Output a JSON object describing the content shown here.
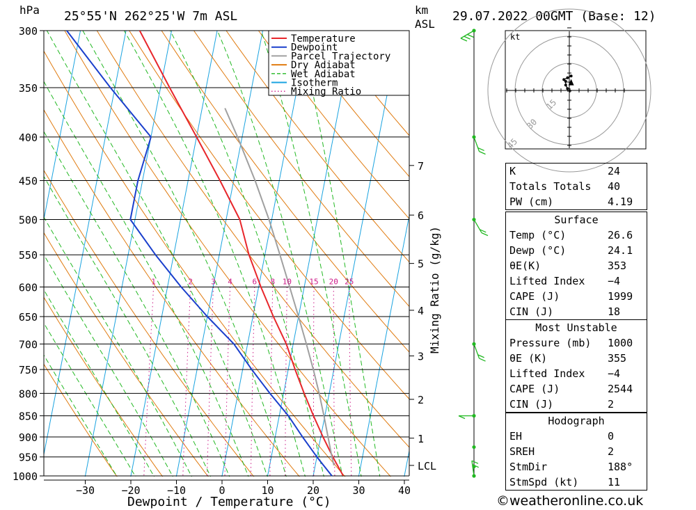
{
  "header": {
    "pressure_unit": "hPa",
    "location": "25°55'N  262°25'W  7m  ASL",
    "height_unit_line1": "km",
    "height_unit_line2": "ASL",
    "datetime": "29.07.2022  00GMT  (Base: 12)"
  },
  "chart_data": {
    "type": "skew-t",
    "xlabel": "Dewpoint / Temperature (°C)",
    "ylabel": "hPa",
    "mixing_ratio_axis_label": "Mixing Ratio (g/kg)",
    "pressure_levels": [
      300,
      350,
      400,
      450,
      500,
      550,
      600,
      650,
      700,
      750,
      800,
      850,
      900,
      950,
      1000
    ],
    "pressure_tick_labels": [
      "300",
      "350",
      "400",
      "450",
      "500",
      "550",
      "600",
      "650",
      "700",
      "750",
      "800",
      "850",
      "900",
      "950",
      "1000"
    ],
    "temperature_ticks": [
      -30,
      -20,
      -10,
      0,
      10,
      20,
      30,
      40
    ],
    "temperature_tick_labels": [
      "−30",
      "−20",
      "−10",
      "0",
      "10",
      "20",
      "30",
      "40"
    ],
    "xlim": [
      -40,
      40
    ],
    "ylim": [
      1000,
      300
    ],
    "height_ticks_km": [
      {
        "label": "7",
        "p": 432
      },
      {
        "label": "6",
        "p": 494
      },
      {
        "label": "5",
        "p": 563
      },
      {
        "label": "4",
        "p": 639
      },
      {
        "label": "3",
        "p": 723
      },
      {
        "label": "2",
        "p": 813
      },
      {
        "label": "1",
        "p": 903
      },
      {
        "label": "LCL",
        "p": 972
      }
    ],
    "mixing_ratio_values": [
      1,
      2,
      3,
      4,
      6,
      8,
      10,
      15,
      20,
      25
    ],
    "mixing_ratio_labels": [
      "1",
      "2",
      "3",
      "4",
      "6",
      "8",
      "10",
      "15",
      "20",
      "25"
    ],
    "legend": {
      "position": "top-right",
      "entries": [
        {
          "label": "Temperature",
          "color": "#e8262b",
          "style": "solid"
        },
        {
          "label": "Dewpoint",
          "color": "#1a3fcc",
          "style": "solid"
        },
        {
          "label": "Parcel Trajectory",
          "color": "#a0a0a0",
          "style": "solid"
        },
        {
          "label": "Dry Adiabat",
          "color": "#e07b10",
          "style": "solid"
        },
        {
          "label": "Wet Adiabat",
          "color": "#22b822",
          "style": "dashed"
        },
        {
          "label": "Isotherm",
          "color": "#1aa3e0",
          "style": "solid"
        },
        {
          "label": "Mixing Ratio",
          "color": "#cc1a88",
          "style": "dotted"
        }
      ]
    },
    "series": [
      {
        "name": "Temperature",
        "color": "#e8262b",
        "points": [
          {
            "p": 1000,
            "t": 26.6
          },
          {
            "p": 950,
            "t": 23.5
          },
          {
            "p": 900,
            "t": 20.5
          },
          {
            "p": 850,
            "t": 17.5
          },
          {
            "p": 800,
            "t": 14.5
          },
          {
            "p": 750,
            "t": 11.5
          },
          {
            "p": 700,
            "t": 8.5
          },
          {
            "p": 650,
            "t": 4.5
          },
          {
            "p": 600,
            "t": 0.5
          },
          {
            "p": 550,
            "t": -3.5
          },
          {
            "p": 500,
            "t": -7
          },
          {
            "p": 450,
            "t": -13
          },
          {
            "p": 400,
            "t": -20
          },
          {
            "p": 350,
            "t": -28
          },
          {
            "p": 300,
            "t": -37
          }
        ]
      },
      {
        "name": "Dewpoint",
        "color": "#1a3fcc",
        "points": [
          {
            "p": 1000,
            "t": 24.1
          },
          {
            "p": 950,
            "t": 20
          },
          {
            "p": 900,
            "t": 16
          },
          {
            "p": 850,
            "t": 12
          },
          {
            "p": 800,
            "t": 7
          },
          {
            "p": 750,
            "t": 2
          },
          {
            "p": 700,
            "t": -3
          },
          {
            "p": 650,
            "t": -10
          },
          {
            "p": 600,
            "t": -17
          },
          {
            "p": 550,
            "t": -24
          },
          {
            "p": 500,
            "t": -31
          },
          {
            "p": 450,
            "t": -31
          },
          {
            "p": 400,
            "t": -30
          },
          {
            "p": 350,
            "t": -41
          },
          {
            "p": 300,
            "t": -53
          }
        ]
      },
      {
        "name": "Parcel Trajectory",
        "color": "#a0a0a0",
        "points": [
          {
            "p": 972,
            "t": 24.1
          },
          {
            "p": 950,
            "t": 23.3
          },
          {
            "p": 900,
            "t": 21.6
          },
          {
            "p": 850,
            "t": 19.8
          },
          {
            "p": 800,
            "t": 17.8
          },
          {
            "p": 750,
            "t": 15.5
          },
          {
            "p": 700,
            "t": 12.9
          },
          {
            "p": 650,
            "t": 10
          },
          {
            "p": 600,
            "t": 6.8
          },
          {
            "p": 550,
            "t": 3.3
          },
          {
            "p": 500,
            "t": -0.6
          },
          {
            "p": 450,
            "t": -5.3
          },
          {
            "p": 400,
            "t": -11
          },
          {
            "p": 370,
            "t": -15
          }
        ]
      }
    ],
    "wind_profile": [
      {
        "p": 300,
        "speed_kt": 15,
        "dir_deg": 300
      },
      {
        "p": 400,
        "speed_kt": 10,
        "dir_deg": 20
      },
      {
        "p": 500,
        "speed_kt": 10,
        "dir_deg": 30
      },
      {
        "p": 700,
        "speed_kt": 10,
        "dir_deg": 20
      },
      {
        "p": 850,
        "speed_kt": 5,
        "dir_deg": 270
      },
      {
        "p": 925,
        "speed_kt": 0,
        "dir_deg": 0
      },
      {
        "p": 975,
        "speed_kt": 0,
        "dir_deg": 0
      },
      {
        "p": 1000,
        "speed_kt": 11,
        "dir_deg": 188
      }
    ]
  },
  "hodograph": {
    "unit_label": "kt",
    "ring_labels": [
      "15",
      "30",
      "45"
    ],
    "points_kt": [
      {
        "u": -1,
        "v": 1
      },
      {
        "u": -2,
        "v": 3
      },
      {
        "u": -2,
        "v": 5
      },
      {
        "u": -3,
        "v": 6
      },
      {
        "u": -1,
        "v": 7
      },
      {
        "u": 1,
        "v": 8
      }
    ],
    "storm_motion_kt": {
      "u": 1,
      "v": 4
    }
  },
  "indices": {
    "basic": [
      {
        "label": "K",
        "value": "24"
      },
      {
        "label": "Totals Totals",
        "value": "40"
      },
      {
        "label": "PW (cm)",
        "value": "4.19"
      }
    ],
    "surface_title": "Surface",
    "surface": [
      {
        "label": "Temp (°C)",
        "value": "26.6"
      },
      {
        "label": "Dewp (°C)",
        "value": "24.1"
      },
      {
        "label": "θE(K)",
        "value": "353"
      },
      {
        "label": "Lifted Index",
        "value": "−4"
      },
      {
        "label": "CAPE (J)",
        "value": "1999"
      },
      {
        "label": "CIN (J)",
        "value": "18"
      }
    ],
    "unstable_title": "Most Unstable",
    "unstable": [
      {
        "label": "Pressure (mb)",
        "value": "1000"
      },
      {
        "label": "θE (K)",
        "value": "355"
      },
      {
        "label": "Lifted Index",
        "value": "−4"
      },
      {
        "label": "CAPE (J)",
        "value": "2544"
      },
      {
        "label": "CIN (J)",
        "value": "2"
      }
    ],
    "hodo_title": "Hodograph",
    "hodo": [
      {
        "label": "EH",
        "value": "0"
      },
      {
        "label": "SREH",
        "value": "2"
      },
      {
        "label": "StmDir",
        "value": "188°"
      },
      {
        "label": "StmSpd (kt)",
        "value": "11"
      }
    ]
  },
  "credit": "©weatheronline.co.uk",
  "colors": {
    "temperature": "#e8262b",
    "dewpoint": "#1a3fcc",
    "parcel": "#a0a0a0",
    "dry_adiabat": "#e07b10",
    "wet_adiabat": "#22b822",
    "isotherm": "#1aa3e0",
    "mixing_ratio": "#cc1a88",
    "wind_profile": "#22b822"
  }
}
